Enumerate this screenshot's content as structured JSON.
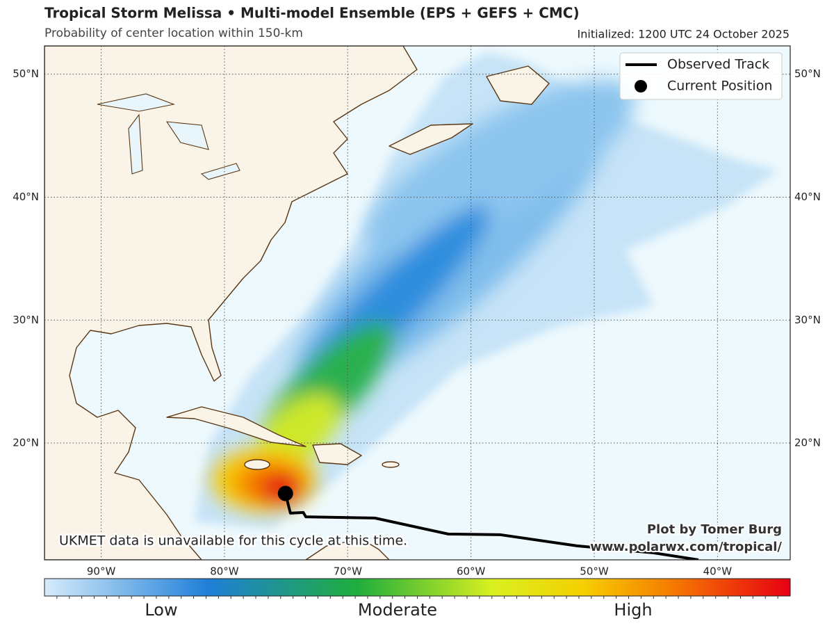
{
  "header": {
    "title": "Tropical Storm Melissa • Multi-model Ensemble (EPS + GEFS + CMC)",
    "subtitle": "Probability of center location within 150-km",
    "initialized": "Initialized: 1200 UTC 24 October 2025"
  },
  "map": {
    "xlim": [
      -94.6,
      -34.1
    ],
    "ylim": [
      10.5,
      52.3
    ],
    "grid": true,
    "xticks": [
      {
        "value": -90,
        "label": "90°W"
      },
      {
        "value": -80,
        "label": "80°W"
      },
      {
        "value": -70,
        "label": "70°W"
      },
      {
        "value": -60,
        "label": "60°W"
      },
      {
        "value": -50,
        "label": "50°W"
      },
      {
        "value": -40,
        "label": "40°W"
      }
    ],
    "yticks": [
      {
        "value": 20,
        "label": "20°N"
      },
      {
        "value": 30,
        "label": "30°N"
      },
      {
        "value": 40,
        "label": "40°N"
      },
      {
        "value": 50,
        "label": "50°N"
      }
    ],
    "track": {
      "name": "Observed Track",
      "color": "#000000",
      "lon": [
        -41.55,
        -45.2,
        -51.4,
        -57.6,
        -61.85,
        -67.8,
        -73.4,
        -73.6,
        -74.65,
        -75.05
      ],
      "lat": [
        10.5,
        11.07,
        11.64,
        12.54,
        12.6,
        13.9,
        14.0,
        14.35,
        14.3,
        15.9
      ]
    },
    "current_position": {
      "name": "Current Position",
      "lon": -75.05,
      "lat": 15.9
    },
    "legend_position": "upper right"
  },
  "colorbar": {
    "labels": [
      "Low",
      "Moderate",
      "High"
    ]
  },
  "annotations": {
    "note": "UKMET data is unavailable for this cycle at this time.",
    "credit": "Plot by Tomer Burg",
    "url": "www.polarwx.com/tropical/"
  }
}
